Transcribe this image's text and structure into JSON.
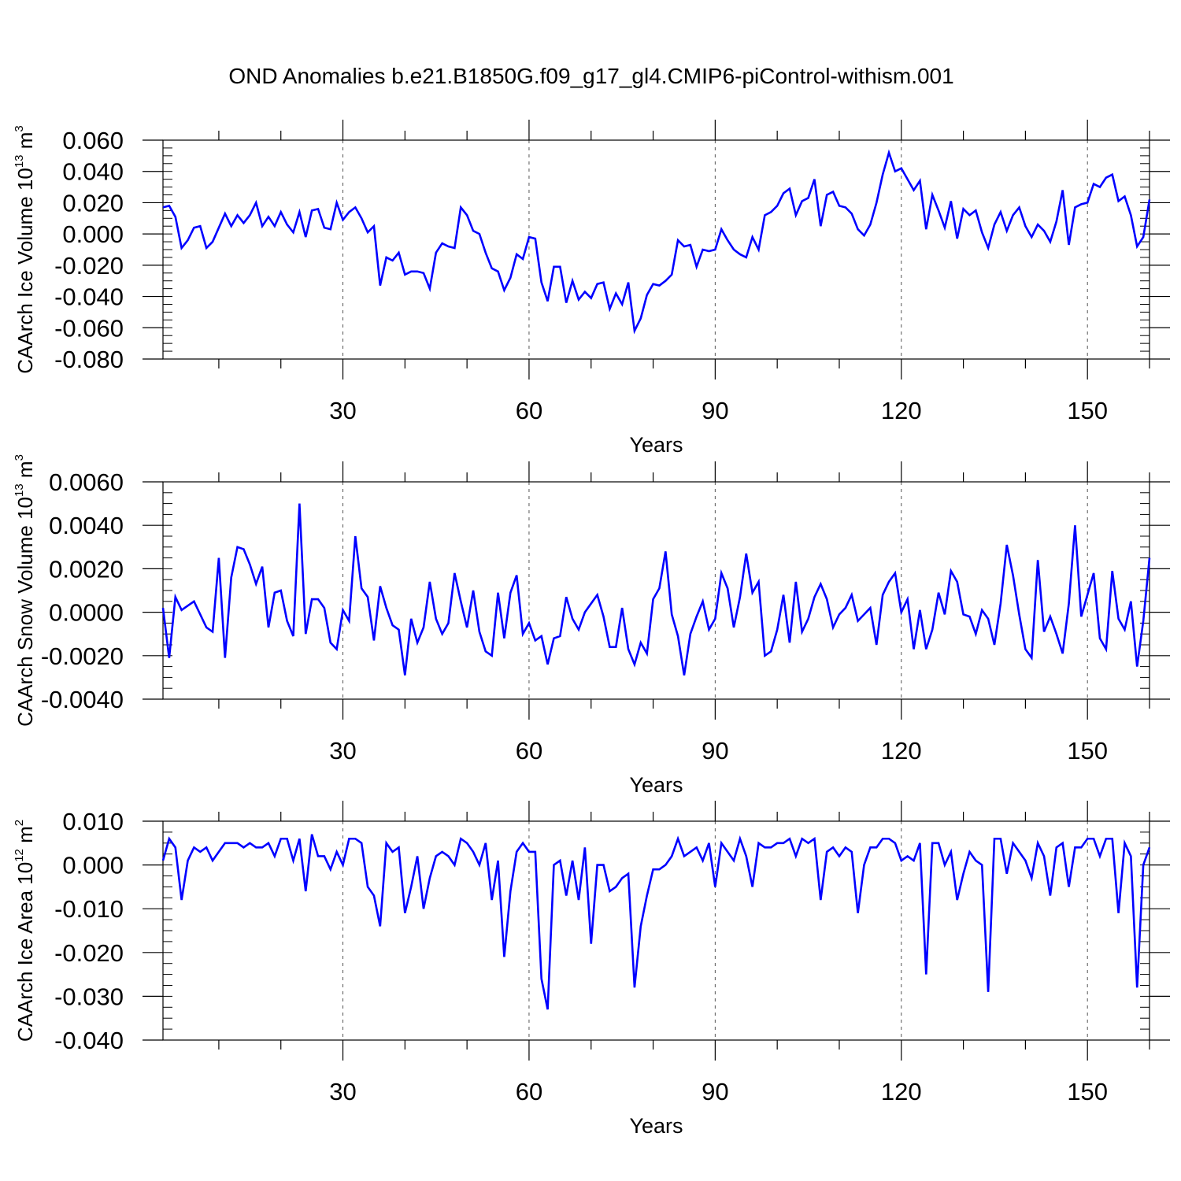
{
  "title": "OND Anomalies b.e21.B1850G.f09_g17_gl4.CMIP6-piControl-withism.001",
  "colors": {
    "series": "#0000ff",
    "axis": "#000000",
    "grid": "#555555"
  },
  "chart_data": [
    {
      "type": "line",
      "xlabel": "Years",
      "ylabel": {
        "text": "CAArch Ice Volume 10",
        "exp": "13",
        "unit": " m",
        "unit_exp": "3"
      },
      "xlim": [
        1,
        160
      ],
      "ylim": [
        -0.08,
        0.06
      ],
      "y_ticks": [
        "0.060",
        "0.040",
        "0.020",
        "0.000",
        "-0.020",
        "-0.040",
        "-0.060",
        "-0.080"
      ],
      "y_tick_values": [
        0.06,
        0.04,
        0.02,
        0.0,
        -0.02,
        -0.04,
        -0.06,
        -0.08
      ],
      "y_minor_step": 0.005,
      "x_ticks": [
        30,
        60,
        90,
        120,
        150
      ],
      "x_minor_step": 10,
      "grid": "dashed vertical at x ticks",
      "series": [
        {
          "values": [
            0.017,
            0.018,
            0.011,
            -0.009,
            -0.004,
            0.004,
            0.005,
            -0.009,
            -0.005,
            0.004,
            0.013,
            0.005,
            0.012,
            0.007,
            0.012,
            0.02,
            0.005,
            0.011,
            0.005,
            0.014,
            0.006,
            0.001,
            0.014,
            -0.002,
            0.015,
            0.016,
            0.004,
            0.003,
            0.02,
            0.009,
            0.014,
            0.017,
            0.01,
            0.001,
            0.005,
            -0.033,
            -0.015,
            -0.017,
            -0.012,
            -0.026,
            -0.024,
            -0.024,
            -0.025,
            -0.035,
            -0.012,
            -0.006,
            -0.008,
            -0.009,
            0.017,
            0.012,
            0.002,
            0.0,
            -0.012,
            -0.022,
            -0.024,
            -0.036,
            -0.028,
            -0.013,
            -0.016,
            -0.002,
            -0.003,
            -0.031,
            -0.043,
            -0.021,
            -0.021,
            -0.044,
            -0.03,
            -0.042,
            -0.037,
            -0.041,
            -0.032,
            -0.031,
            -0.048,
            -0.038,
            -0.045,
            -0.031,
            -0.062,
            -0.054,
            -0.039,
            -0.032,
            -0.033,
            -0.03,
            -0.026,
            -0.004,
            -0.008,
            -0.007,
            -0.021,
            -0.01,
            -0.011,
            -0.01,
            0.003,
            -0.004,
            -0.01,
            -0.013,
            -0.015,
            -0.002,
            -0.01,
            0.012,
            0.014,
            0.018,
            0.026,
            0.029,
            0.012,
            0.021,
            0.023,
            0.035,
            0.005,
            0.025,
            0.027,
            0.018,
            0.017,
            0.013,
            0.003,
            -0.001,
            0.006,
            0.02,
            0.038,
            0.052,
            0.04,
            0.042,
            0.035,
            0.028,
            0.034,
            0.003,
            0.025,
            0.015,
            0.004,
            0.021,
            -0.003,
            0.016,
            0.012,
            0.015,
            0.001,
            -0.009,
            0.006,
            0.014,
            0.002,
            0.012,
            0.017,
            0.005,
            -0.002,
            0.006,
            0.002,
            -0.005,
            0.008,
            0.028,
            -0.007,
            0.017,
            0.019,
            0.02,
            0.032,
            0.03,
            0.036,
            0.038,
            0.021,
            0.024,
            0.012,
            -0.008,
            -0.002,
            0.022
          ]
        }
      ]
    },
    {
      "type": "line",
      "xlabel": "Years",
      "ylabel": {
        "text": "CAArch Snow Volume 10",
        "exp": "13",
        "unit": " m",
        "unit_exp": "3"
      },
      "xlim": [
        1,
        160
      ],
      "ylim": [
        -0.004,
        0.006
      ],
      "y_ticks": [
        "0.0060",
        "0.0040",
        "0.0020",
        "0.0000",
        "-0.0020",
        "-0.0040"
      ],
      "y_tick_values": [
        0.006,
        0.004,
        0.002,
        0.0,
        -0.002,
        -0.004
      ],
      "y_minor_step": 0.0005,
      "x_ticks": [
        30,
        60,
        90,
        120,
        150
      ],
      "x_minor_step": 10,
      "grid": "dashed vertical at x ticks",
      "series": [
        {
          "values": [
            0.0002,
            -0.0021,
            0.0007,
            0.0001,
            0.0003,
            0.0005,
            -0.0001,
            -0.0007,
            -0.0009,
            0.0025,
            -0.0021,
            0.0016,
            0.003,
            0.0029,
            0.0022,
            0.0013,
            0.0021,
            -0.0007,
            0.0009,
            0.001,
            -0.0004,
            -0.0011,
            0.005,
            -0.001,
            0.0006,
            0.0006,
            0.0002,
            -0.0014,
            -0.0017,
            0.0001,
            -0.0004,
            0.0035,
            0.0011,
            0.0007,
            -0.0013,
            0.0012,
            0.0002,
            -0.0006,
            -0.0008,
            -0.0029,
            -0.0003,
            -0.0014,
            -0.0007,
            0.0014,
            -0.0003,
            -0.001,
            -0.0005,
            0.0018,
            0.0005,
            -0.0007,
            0.001,
            -0.0009,
            -0.0018,
            -0.002,
            0.0009,
            -0.0012,
            0.0009,
            0.0017,
            -0.001,
            -0.0005,
            -0.0013,
            -0.0011,
            -0.0024,
            -0.0012,
            -0.0011,
            0.0007,
            -0.0003,
            -0.0008,
            0.0,
            0.0004,
            0.0008,
            -0.0002,
            -0.0016,
            -0.0016,
            0.0002,
            -0.0017,
            -0.0024,
            -0.0014,
            -0.0019,
            0.0006,
            0.0011,
            0.0028,
            -0.0001,
            -0.0011,
            -0.0029,
            -0.001,
            -0.0002,
            0.0005,
            -0.0008,
            -0.0003,
            0.0018,
            0.0011,
            -0.0007,
            0.0007,
            0.0027,
            0.0009,
            0.0014,
            -0.002,
            -0.0018,
            -0.0008,
            0.0008,
            -0.0014,
            0.0014,
            -0.0009,
            -0.0003,
            0.0007,
            0.0013,
            0.0006,
            -0.0007,
            -0.0001,
            0.0002,
            0.0008,
            -0.0004,
            -0.0001,
            0.0002,
            -0.0015,
            0.0008,
            0.0014,
            0.0018,
            0.0,
            0.0006,
            -0.0017,
            0.0001,
            -0.0017,
            -0.0008,
            0.0009,
            -0.0001,
            0.0019,
            0.0014,
            -0.0001,
            -0.0002,
            -0.001,
            0.0001,
            -0.0003,
            -0.0015,
            0.0004,
            0.0031,
            0.0017,
            -0.0001,
            -0.0017,
            -0.0021,
            0.0024,
            -0.0009,
            -0.0002,
            -0.001,
            -0.0019,
            0.0004,
            0.004,
            -0.0002,
            0.0008,
            0.0018,
            -0.0012,
            -0.0017,
            0.0019,
            -0.0003,
            -0.0008,
            0.0005,
            -0.0025,
            -0.0004,
            0.0025
          ]
        }
      ]
    },
    {
      "type": "line",
      "xlabel": "Years",
      "ylabel": {
        "text": "CAArch Ice Area 10",
        "exp": "12",
        "unit": " m",
        "unit_exp": "2"
      },
      "xlim": [
        1,
        160
      ],
      "ylim": [
        -0.04,
        0.01
      ],
      "y_ticks": [
        "0.010",
        "0.000",
        "-0.010",
        "-0.020",
        "-0.030",
        "-0.040"
      ],
      "y_tick_values": [
        0.01,
        0.0,
        -0.01,
        -0.02,
        -0.03,
        -0.04
      ],
      "y_minor_step": 0.0025,
      "x_ticks": [
        30,
        60,
        90,
        120,
        150
      ],
      "x_minor_step": 10,
      "grid": "dashed vertical at x ticks",
      "series": [
        {
          "values": [
            0.001,
            0.006,
            0.004,
            -0.008,
            0.001,
            0.004,
            0.003,
            0.004,
            0.001,
            0.003,
            0.005,
            0.005,
            0.005,
            0.004,
            0.005,
            0.004,
            0.004,
            0.005,
            0.002,
            0.006,
            0.006,
            0.001,
            0.006,
            -0.006,
            0.007,
            0.002,
            0.002,
            -0.001,
            0.003,
            0.0,
            0.006,
            0.006,
            0.005,
            -0.005,
            -0.007,
            -0.014,
            0.005,
            0.003,
            0.004,
            -0.011,
            -0.005,
            0.002,
            -0.01,
            -0.003,
            0.002,
            0.003,
            0.002,
            0.0,
            0.006,
            0.005,
            0.003,
            0.0,
            0.005,
            -0.008,
            0.001,
            -0.021,
            -0.006,
            0.003,
            0.005,
            0.003,
            0.003,
            -0.026,
            -0.033,
            0.0,
            0.001,
            -0.007,
            0.001,
            -0.008,
            0.004,
            -0.018,
            0.0,
            0.0,
            -0.006,
            -0.005,
            -0.003,
            -0.002,
            -0.028,
            -0.014,
            -0.007,
            -0.001,
            -0.001,
            0.0,
            0.002,
            0.006,
            0.002,
            0.003,
            0.004,
            0.001,
            0.005,
            -0.005,
            0.005,
            0.003,
            0.001,
            0.006,
            0.002,
            -0.005,
            0.005,
            0.004,
            0.004,
            0.005,
            0.005,
            0.006,
            0.002,
            0.006,
            0.005,
            0.006,
            -0.008,
            0.003,
            0.004,
            0.002,
            0.004,
            0.003,
            -0.011,
            0.0,
            0.004,
            0.004,
            0.006,
            0.006,
            0.005,
            0.001,
            0.002,
            0.001,
            0.005,
            -0.025,
            0.005,
            0.005,
            0.0,
            0.003,
            -0.008,
            -0.002,
            0.003,
            0.001,
            0.0,
            -0.029,
            0.006,
            0.006,
            -0.002,
            0.005,
            0.003,
            0.001,
            -0.003,
            0.005,
            0.002,
            -0.007,
            0.004,
            0.005,
            -0.005,
            0.004,
            0.004,
            0.006,
            0.006,
            0.002,
            0.006,
            0.006,
            -0.011,
            0.005,
            0.002,
            -0.028,
            0.0,
            0.004
          ]
        }
      ]
    }
  ]
}
